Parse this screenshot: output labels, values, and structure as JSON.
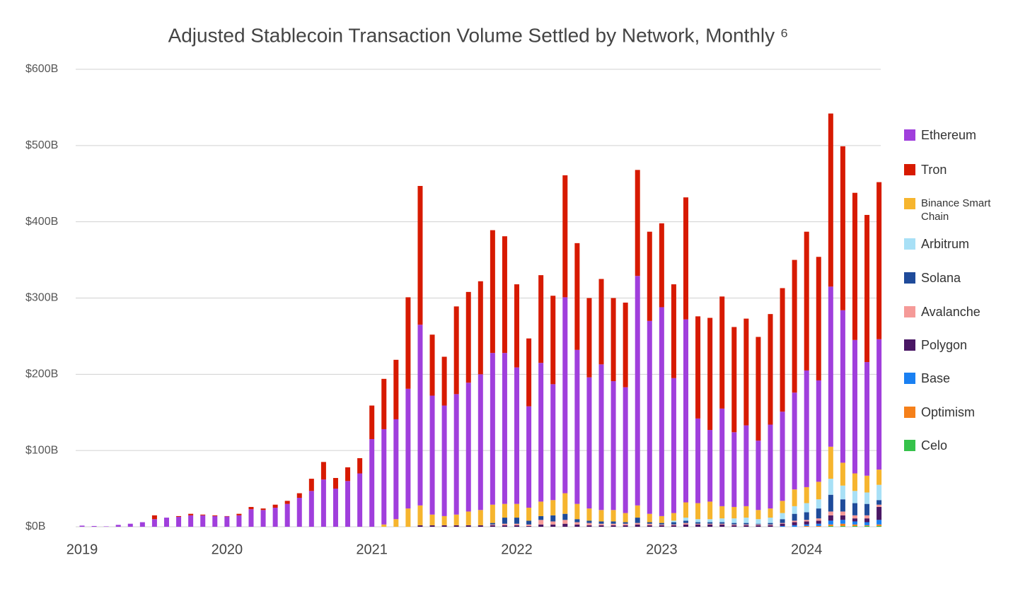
{
  "chart_data": {
    "type": "stacked_bar",
    "title": "Adjusted Stablecoin Transaction Volume Settled by Network, Monthly ⁶",
    "categories": [
      "2019",
      null,
      null,
      null,
      null,
      null,
      null,
      null,
      null,
      null,
      null,
      null,
      "2020",
      null,
      null,
      null,
      null,
      null,
      null,
      null,
      null,
      null,
      null,
      null,
      "2021",
      null,
      null,
      null,
      null,
      null,
      null,
      null,
      null,
      null,
      null,
      null,
      "2022",
      null,
      null,
      null,
      null,
      null,
      null,
      null,
      null,
      null,
      null,
      null,
      "2023",
      null,
      null,
      null,
      null,
      null,
      null,
      null,
      null,
      null,
      null,
      null,
      "2024",
      null,
      null,
      null,
      null,
      null,
      null
    ],
    "ylim": [
      0,
      600
    ],
    "yticks": [
      {
        "value": 0,
        "label": "$0B"
      },
      {
        "value": 100,
        "label": "$100B"
      },
      {
        "value": 200,
        "label": "$200B"
      },
      {
        "value": 300,
        "label": "$300B"
      },
      {
        "value": 400,
        "label": "$400B"
      },
      {
        "value": 500,
        "label": "$500B"
      },
      {
        "value": 600,
        "label": "$600B"
      }
    ],
    "grid": true,
    "legend": "right",
    "series": [
      {
        "name": "Ethereum",
        "color": "#a03fdc",
        "values": [
          1.5,
          1,
          0.5,
          2.5,
          4,
          6,
          10,
          12,
          13,
          15,
          15,
          14,
          13.5,
          15,
          23,
          22,
          25,
          30,
          38,
          47,
          62,
          50,
          60,
          70,
          115,
          125,
          131,
          157,
          237,
          156,
          145,
          158,
          169,
          178,
          199,
          198,
          179,
          133,
          182,
          152,
          257,
          202,
          172,
          191,
          169,
          165,
          301,
          253,
          274,
          177,
          240,
          111,
          94,
          128,
          98,
          106,
          91,
          110,
          117,
          127,
          153,
          133,
          210,
          200,
          175,
          149,
          171
        ]
      },
      {
        "name": "Tron",
        "color": "#d71a00",
        "values": [
          0,
          0,
          0,
          0,
          0,
          0,
          5,
          0,
          1,
          2,
          1,
          1,
          0.5,
          2,
          3,
          2,
          4,
          4,
          6,
          16,
          23,
          14,
          18,
          20,
          44,
          66,
          78,
          120,
          182,
          80,
          64,
          115,
          119,
          122,
          161,
          153,
          109,
          89,
          115,
          116,
          160,
          140,
          104,
          112,
          109,
          111,
          139,
          117,
          110,
          123,
          160,
          134,
          147,
          147,
          138,
          140,
          136,
          145,
          162,
          174,
          182,
          162,
          227,
          215,
          193,
          193,
          206
        ]
      },
      {
        "name": "Binance Smart Chain",
        "color": "#f6b52e",
        "values": [
          0,
          0,
          0,
          0,
          0,
          0,
          0,
          0,
          0,
          0,
          0,
          0,
          0,
          0,
          0,
          0,
          0,
          0,
          0,
          0,
          0,
          0,
          0,
          0,
          0,
          3,
          10,
          24,
          26,
          14,
          12,
          14,
          18,
          20,
          24,
          18,
          18,
          17,
          19,
          20,
          27,
          20,
          16,
          15,
          15,
          12,
          16,
          11,
          9,
          10,
          20,
          21,
          23,
          16,
          15,
          15,
          12,
          12,
          16,
          22,
          21,
          23,
          42,
          30,
          23,
          22,
          20
        ]
      },
      {
        "name": "Arbitrum",
        "color": "#a8e0f6",
        "values": [
          0,
          0,
          0,
          0,
          0,
          0,
          0,
          0,
          0,
          0,
          0,
          0,
          0,
          0,
          0,
          0,
          0,
          0,
          0,
          0,
          0,
          0,
          0,
          0,
          0,
          0,
          0,
          0,
          0,
          0,
          0,
          0,
          0,
          0,
          0,
          0,
          0,
          0,
          0,
          0,
          0,
          0,
          0,
          0,
          0,
          0,
          0,
          0,
          0,
          2,
          4,
          4,
          4,
          5,
          6,
          7,
          6,
          7,
          8,
          10,
          12,
          12,
          21,
          18,
          16,
          15,
          20
        ]
      },
      {
        "name": "Solana",
        "color": "#1f4b9a",
        "values": [
          0,
          0,
          0,
          0,
          0,
          0,
          0,
          0,
          0,
          0,
          0,
          0,
          0,
          0,
          0,
          0,
          0,
          0,
          0,
          0,
          0,
          0,
          0,
          0,
          0,
          0,
          0,
          0,
          0,
          0,
          0,
          0,
          0,
          0,
          2,
          8,
          8,
          5,
          5,
          8,
          8,
          4,
          3,
          3,
          3,
          2,
          7,
          2,
          2,
          3,
          3,
          2,
          2,
          2,
          2,
          2,
          1,
          2,
          5,
          9,
          10,
          13,
          22,
          16,
          16,
          15,
          6
        ]
      },
      {
        "name": "Avalanche",
        "color": "#f59a98",
        "values": [
          0,
          0,
          0,
          0,
          0,
          0,
          0,
          0,
          0,
          0,
          0,
          0,
          0,
          0,
          0,
          0,
          0,
          0,
          0,
          0,
          0,
          0,
          0,
          0,
          0,
          0,
          0,
          0,
          0,
          0,
          0,
          0,
          0,
          0,
          1,
          2,
          2,
          2,
          6,
          4,
          5,
          3,
          3,
          2,
          2,
          2,
          2,
          2,
          1,
          1,
          2,
          1,
          1,
          1,
          1,
          1,
          1,
          1,
          1,
          2,
          2,
          3,
          5,
          5,
          4,
          4,
          3
        ]
      },
      {
        "name": "Polygon",
        "color": "#4a1764",
        "values": [
          0,
          0,
          0,
          0,
          0,
          0,
          0,
          0,
          0,
          0,
          0,
          0,
          0,
          0,
          0,
          0,
          0,
          0,
          0,
          0,
          0,
          0,
          0,
          0,
          0,
          0,
          0,
          0,
          2,
          2,
          2,
          2,
          2,
          2,
          2,
          2,
          2,
          1,
          3,
          3,
          4,
          3,
          2,
          2,
          2,
          2,
          3,
          2,
          2,
          2,
          3,
          3,
          3,
          3,
          2,
          2,
          2,
          2,
          3,
          4,
          4,
          4,
          7,
          6,
          4,
          5,
          17
        ]
      },
      {
        "name": "Base",
        "color": "#1a80f2",
        "values": [
          0,
          0,
          0,
          0,
          0,
          0,
          0,
          0,
          0,
          0,
          0,
          0,
          0,
          0,
          0,
          0,
          0,
          0,
          0,
          0,
          0,
          0,
          0,
          0,
          0,
          0,
          0,
          0,
          0,
          0,
          0,
          0,
          0,
          0,
          0,
          0,
          0,
          0,
          0,
          0,
          0,
          0,
          0,
          0,
          0,
          0,
          0,
          0,
          0,
          0,
          0,
          0,
          0,
          0,
          0,
          0,
          0,
          0,
          1,
          2,
          2,
          3,
          5,
          5,
          4,
          4,
          6
        ]
      },
      {
        "name": "Optimism",
        "color": "#f5801a",
        "values": [
          0,
          0,
          0,
          0,
          0,
          0,
          0,
          0,
          0,
          0,
          0,
          0,
          0,
          0,
          0,
          0,
          0,
          0,
          0,
          0,
          0,
          0,
          0,
          0,
          0,
          0,
          0,
          0,
          0,
          0,
          0,
          0,
          0,
          0,
          0,
          0,
          0,
          0,
          0,
          0,
          0,
          0,
          0,
          0,
          0,
          0,
          0,
          0,
          0,
          0,
          0,
          0,
          0,
          0,
          0,
          0,
          0,
          0,
          0,
          0,
          1,
          1,
          2,
          3,
          2,
          1,
          2
        ]
      },
      {
        "name": "Celo",
        "color": "#36c24b",
        "values": [
          0,
          0,
          0,
          0,
          0,
          0,
          0,
          0,
          0,
          0,
          0,
          0,
          0,
          0,
          0,
          0,
          0,
          0,
          0,
          0,
          0,
          0,
          0,
          0,
          0,
          0,
          0,
          0,
          0,
          0,
          0,
          0,
          0,
          0,
          0,
          0,
          0,
          0,
          0,
          0,
          0,
          0,
          0,
          0,
          0,
          0,
          0,
          0,
          0,
          0,
          0,
          0,
          0,
          0,
          0,
          0,
          0,
          0,
          0,
          0,
          0,
          0,
          1,
          1,
          1,
          1,
          1
        ]
      }
    ]
  }
}
